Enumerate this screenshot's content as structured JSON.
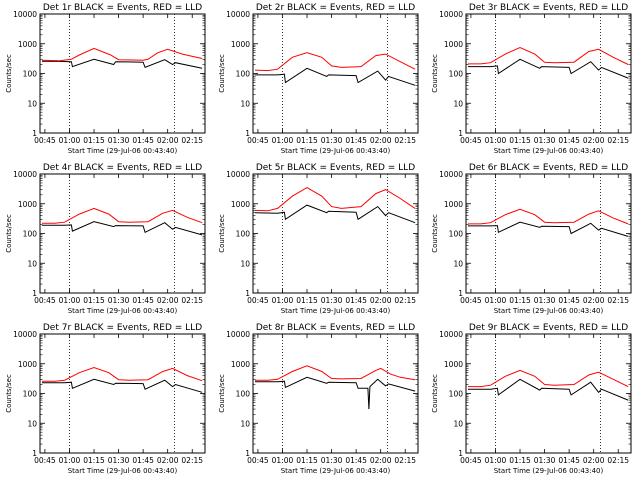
{
  "chart_data": {
    "type": "line",
    "layout": "3x3 grid",
    "y_scale": "log",
    "ylim": [
      1,
      10000
    ],
    "y_ticks": [
      "1",
      "10",
      "100",
      "1000",
      "10000"
    ],
    "x_ticks": [
      "00:45",
      "01:00",
      "01:15",
      "01:30",
      "01:45",
      "02:00",
      "02:15"
    ],
    "x_tick_hours": [
      0.75,
      1.0,
      1.25,
      1.5,
      1.75,
      2.0,
      2.25
    ],
    "xlim_hours": [
      0.7,
      2.38
    ],
    "dotted_vlines_hours": [
      1.0,
      2.07
    ],
    "colors": {
      "events": "#000000",
      "lld": "#ff0000",
      "axes": "#000000"
    },
    "panels": [
      {
        "title": "Det 1r BLACK = Events, RED = LLD",
        "xlabel": "Start Time (29-Jul-06 00:43:40)",
        "ylabel": "Counts/sec",
        "series": [
          {
            "color": "black",
            "x": [
              0.72,
              0.9,
              1.02,
              1.03,
              1.25,
              1.45,
              1.47,
              1.75,
              1.77,
              1.97,
              2.05,
              2.08,
              2.35
            ],
            "y": [
              260,
              255,
              250,
              170,
              300,
              200,
              250,
              240,
              160,
              290,
              200,
              230,
              150
            ]
          },
          {
            "color": "red",
            "x": [
              0.72,
              0.9,
              1.02,
              1.1,
              1.25,
              1.42,
              1.5,
              1.75,
              1.8,
              1.9,
              2.0,
              2.15,
              2.35
            ],
            "y": [
              280,
              270,
              300,
              420,
              700,
              420,
              290,
              280,
              300,
              500,
              650,
              450,
              320
            ]
          }
        ]
      },
      {
        "title": "Det 2r BLACK = Events, RED = LLD",
        "xlabel": "Start Time (29-Jul-06 00:43:40)",
        "ylabel": "Counts/sec",
        "series": [
          {
            "color": "black",
            "x": [
              0.72,
              0.95,
              1.02,
              1.03,
              1.25,
              1.45,
              1.47,
              1.75,
              1.77,
              1.97,
              2.05,
              2.08,
              2.35
            ],
            "y": [
              90,
              90,
              95,
              50,
              150,
              80,
              90,
              85,
              50,
              120,
              60,
              80,
              40
            ]
          },
          {
            "color": "red",
            "x": [
              0.72,
              0.85,
              0.95,
              1.1,
              1.25,
              1.4,
              1.5,
              1.6,
              1.8,
              1.95,
              2.05,
              2.2,
              2.35
            ],
            "y": [
              130,
              125,
              140,
              350,
              500,
              350,
              180,
              160,
              170,
              400,
              450,
              250,
              140
            ]
          }
        ]
      },
      {
        "title": "Det 3r BLACK = Events, RED = LLD",
        "xlabel": "Start Time (29-Jul-06 00:43:40)",
        "ylabel": "Counts/sec",
        "series": [
          {
            "color": "black",
            "x": [
              0.72,
              0.95,
              1.02,
              1.03,
              1.25,
              1.45,
              1.47,
              1.75,
              1.77,
              1.97,
              2.05,
              2.08,
              2.35
            ],
            "y": [
              170,
              170,
              180,
              100,
              300,
              150,
              170,
              160,
              100,
              250,
              130,
              160,
              70
            ]
          },
          {
            "color": "red",
            "x": [
              0.72,
              0.85,
              0.95,
              1.1,
              1.25,
              1.4,
              1.5,
              1.6,
              1.8,
              1.95,
              2.05,
              2.2,
              2.35
            ],
            "y": [
              210,
              210,
              230,
              450,
              750,
              450,
              240,
              230,
              240,
              550,
              650,
              350,
              200
            ]
          }
        ]
      },
      {
        "title": "Det 4r BLACK = Events, RED = LLD",
        "xlabel": "Start Time (29-Jul-06 00:43:40)",
        "ylabel": "Counts/sec",
        "series": [
          {
            "color": "black",
            "x": [
              0.72,
              0.95,
              1.02,
              1.03,
              1.25,
              1.45,
              1.47,
              1.75,
              1.77,
              1.97,
              2.05,
              2.08,
              2.35
            ],
            "y": [
              190,
              190,
              195,
              120,
              250,
              170,
              185,
              180,
              110,
              230,
              140,
              160,
              90
            ]
          },
          {
            "color": "red",
            "x": [
              0.72,
              0.85,
              0.95,
              1.1,
              1.25,
              1.4,
              1.5,
              1.6,
              1.8,
              1.95,
              2.05,
              2.2,
              2.35
            ],
            "y": [
              220,
              220,
              240,
              450,
              700,
              450,
              250,
              240,
              250,
              480,
              600,
              350,
              230
            ]
          }
        ]
      },
      {
        "title": "Det 5r BLACK = Events, RED = LLD",
        "xlabel": "Start Time (29-Jul-06 00:43:40)",
        "ylabel": "Counts/sec",
        "series": [
          {
            "color": "black",
            "x": [
              0.72,
              0.95,
              1.02,
              1.03,
              1.25,
              1.45,
              1.47,
              1.75,
              1.77,
              1.97,
              2.05,
              2.08,
              2.35
            ],
            "y": [
              500,
              480,
              520,
              300,
              900,
              500,
              560,
              520,
              300,
              800,
              400,
              500,
              230
            ]
          },
          {
            "color": "red",
            "x": [
              0.72,
              0.85,
              0.95,
              1.1,
              1.25,
              1.4,
              1.5,
              1.6,
              1.8,
              1.95,
              2.05,
              2.2,
              2.35
            ],
            "y": [
              600,
              580,
              700,
              1800,
              3500,
              1800,
              800,
              700,
              800,
              2200,
              3000,
              1500,
              700
            ]
          }
        ]
      },
      {
        "title": "Det 6r BLACK = Events, RED = LLD",
        "xlabel": "Start Time (29-Jul-06 00:43:40)",
        "ylabel": "Counts/sec",
        "series": [
          {
            "color": "black",
            "x": [
              0.72,
              0.95,
              1.02,
              1.03,
              1.25,
              1.45,
              1.47,
              1.75,
              1.77,
              1.97,
              2.05,
              2.08,
              2.35
            ],
            "y": [
              180,
              180,
              185,
              110,
              240,
              160,
              175,
              170,
              100,
              220,
              130,
              150,
              80
            ]
          },
          {
            "color": "red",
            "x": [
              0.72,
              0.85,
              0.95,
              1.1,
              1.25,
              1.4,
              1.5,
              1.6,
              1.8,
              1.95,
              2.05,
              2.2,
              2.35
            ],
            "y": [
              210,
              210,
              230,
              430,
              650,
              430,
              240,
              230,
              240,
              450,
              580,
              330,
              210
            ]
          }
        ]
      },
      {
        "title": "Det 7r BLACK = Events, RED = LLD",
        "xlabel": "Start Time (29-Jul-06 00:43:40)",
        "ylabel": "Counts/sec",
        "series": [
          {
            "color": "black",
            "x": [
              0.72,
              0.95,
              1.02,
              1.03,
              1.25,
              1.45,
              1.47,
              1.75,
              1.77,
              1.97,
              2.05,
              2.08,
              2.35
            ],
            "y": [
              230,
              230,
              240,
              150,
              300,
              200,
              220,
              215,
              140,
              280,
              170,
              200,
              110
            ]
          },
          {
            "color": "red",
            "x": [
              0.72,
              0.85,
              0.95,
              1.1,
              1.25,
              1.4,
              1.5,
              1.6,
              1.8,
              1.95,
              2.05,
              2.2,
              2.35
            ],
            "y": [
              260,
              260,
              280,
              500,
              750,
              500,
              290,
              280,
              290,
              550,
              700,
              400,
              270
            ]
          }
        ]
      },
      {
        "title": "Det 8r BLACK = Events, RED = LLD",
        "xlabel": "Start Time (29-Jul-06 00:43:40)",
        "ylabel": "Counts/sec",
        "series": [
          {
            "color": "black",
            "x": [
              0.72,
              0.95,
              1.02,
              1.03,
              1.25,
              1.45,
              1.47,
              1.75,
              1.77,
              1.87,
              1.88,
              1.89,
              1.97,
              2.05,
              2.08,
              2.35
            ],
            "y": [
              250,
              250,
              260,
              160,
              350,
              220,
              240,
              230,
              150,
              150,
              30,
              170,
              300,
              180,
              210,
              120
            ]
          },
          {
            "color": "red",
            "x": [
              0.72,
              0.85,
              0.95,
              1.1,
              1.25,
              1.4,
              1.5,
              1.6,
              1.8,
              1.95,
              2.0,
              2.1,
              2.2,
              2.35
            ],
            "y": [
              280,
              280,
              300,
              550,
              850,
              550,
              320,
              310,
              320,
              600,
              700,
              450,
              350,
              290
            ]
          }
        ]
      },
      {
        "title": "Det 9r BLACK = Events, RED = LLD",
        "xlabel": "Start Time (29-Jul-06 00:43:40)",
        "ylabel": "Counts/sec",
        "series": [
          {
            "color": "black",
            "x": [
              0.72,
              0.95,
              1.02,
              1.03,
              1.25,
              1.45,
              1.47,
              1.75,
              1.77,
              1.97,
              2.05,
              2.08,
              2.35
            ],
            "y": [
              140,
              140,
              150,
              90,
              300,
              130,
              150,
              140,
              90,
              240,
              110,
              140,
              60
            ]
          },
          {
            "color": "red",
            "x": [
              0.72,
              0.85,
              0.95,
              1.1,
              1.25,
              1.4,
              1.5,
              1.6,
              1.8,
              1.95,
              2.05,
              2.2,
              2.35
            ],
            "y": [
              170,
              170,
              190,
              380,
              600,
              380,
              200,
              190,
              200,
              420,
              520,
              300,
              170
            ]
          }
        ]
      }
    ]
  }
}
